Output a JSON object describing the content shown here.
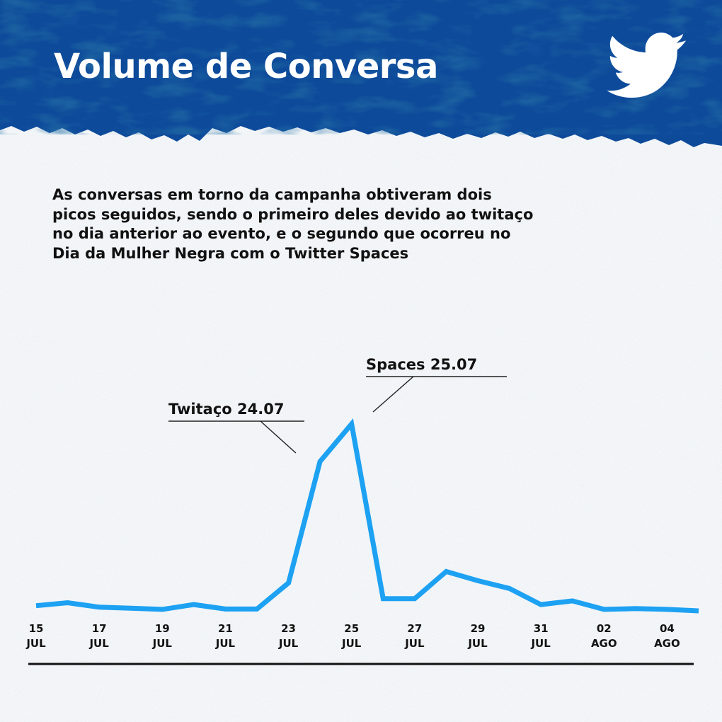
{
  "header": {
    "title": "Volume de Conversa",
    "logo_icon": "twitter-bird-icon",
    "background_color": "#0d4a9a",
    "title_color": "#ffffff"
  },
  "description": "As conversas em torno da campanha obtiveram dois picos seguidos, sendo o primeiro deles devido ao twitaço no dia anterior ao evento, e o segundo que ocorreu no Dia da Mulher Negra com o Twitter Spaces",
  "chart_data": {
    "type": "line",
    "title": "",
    "xlabel": "",
    "ylabel": "",
    "y_axis_shown": false,
    "grid": false,
    "line_color": "#1da1f2",
    "x": [
      "15 JUL",
      "16 JUL",
      "17 JUL",
      "18 JUL",
      "19 JUL",
      "20 JUL",
      "21 JUL",
      "22 JUL",
      "23 JUL",
      "24 JUL",
      "25 JUL",
      "26 JUL",
      "27 JUL",
      "28 JUL",
      "29 JUL",
      "30 JUL",
      "31 JUL",
      "01 AGO",
      "02 AGO",
      "03 AGO",
      "04 AGO",
      "05 AGO"
    ],
    "values": [
      1.6,
      2.4,
      1.2,
      0.9,
      0.6,
      1.9,
      0.7,
      0.7,
      7.8,
      40.8,
      51.0,
      3.5,
      3.5,
      10.9,
      8.4,
      6.3,
      1.9,
      2.9,
      0.6,
      0.8,
      0.6,
      0.2
    ],
    "ylim": [
      0,
      52
    ],
    "tick_labels": [
      {
        "day": "15",
        "month": "JUL"
      },
      {
        "day": "17",
        "month": "JUL"
      },
      {
        "day": "19",
        "month": "JUL"
      },
      {
        "day": "21",
        "month": "JUL"
      },
      {
        "day": "23",
        "month": "JUL"
      },
      {
        "day": "25",
        "month": "JUL"
      },
      {
        "day": "27",
        "month": "JUL"
      },
      {
        "day": "29",
        "month": "JUL"
      },
      {
        "day": "31",
        "month": "JUL"
      },
      {
        "day": "02",
        "month": "AGO"
      },
      {
        "day": "04",
        "month": "AGO"
      }
    ],
    "annotations": [
      {
        "text": "Twitaço 24.07",
        "x": "24 JUL"
      },
      {
        "text": "Spaces 25.07",
        "x": "25 JUL"
      }
    ]
  }
}
